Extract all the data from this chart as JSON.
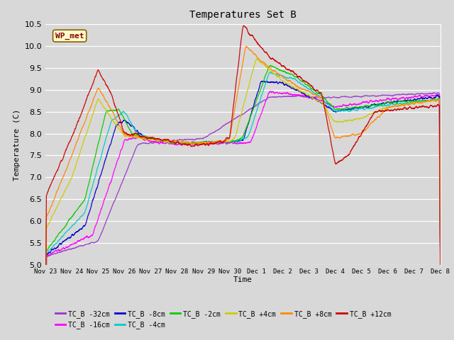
{
  "title": "Temperatures Set B",
  "xlabel": "Time",
  "ylabel": "Temperature (C)",
  "ylim": [
    5.0,
    10.5
  ],
  "bg_color": "#d8d8d8",
  "series": [
    {
      "label": "TC_B -32cm",
      "color": "#9933CC"
    },
    {
      "label": "TC_B -16cm",
      "color": "#FF00FF"
    },
    {
      "label": "TC_B -8cm",
      "color": "#0000CC"
    },
    {
      "label": "TC_B -4cm",
      "color": "#00CCCC"
    },
    {
      "label": "TC_B -2cm",
      "color": "#00CC00"
    },
    {
      "label": "TC_B +4cm",
      "color": "#CCCC00"
    },
    {
      "label": "TC_B +8cm",
      "color": "#FF8800"
    },
    {
      "label": "TC_B +12cm",
      "color": "#CC0000"
    }
  ],
  "xtick_labels": [
    "Nov 23",
    "Nov 24",
    "Nov 25",
    "Nov 26",
    "Nov 27",
    "Nov 28",
    "Nov 29",
    "Nov 30",
    "Dec 1",
    "Dec 2",
    "Dec 3",
    "Dec 4",
    "Dec 5",
    "Dec 6",
    "Dec 7",
    "Dec 8"
  ]
}
